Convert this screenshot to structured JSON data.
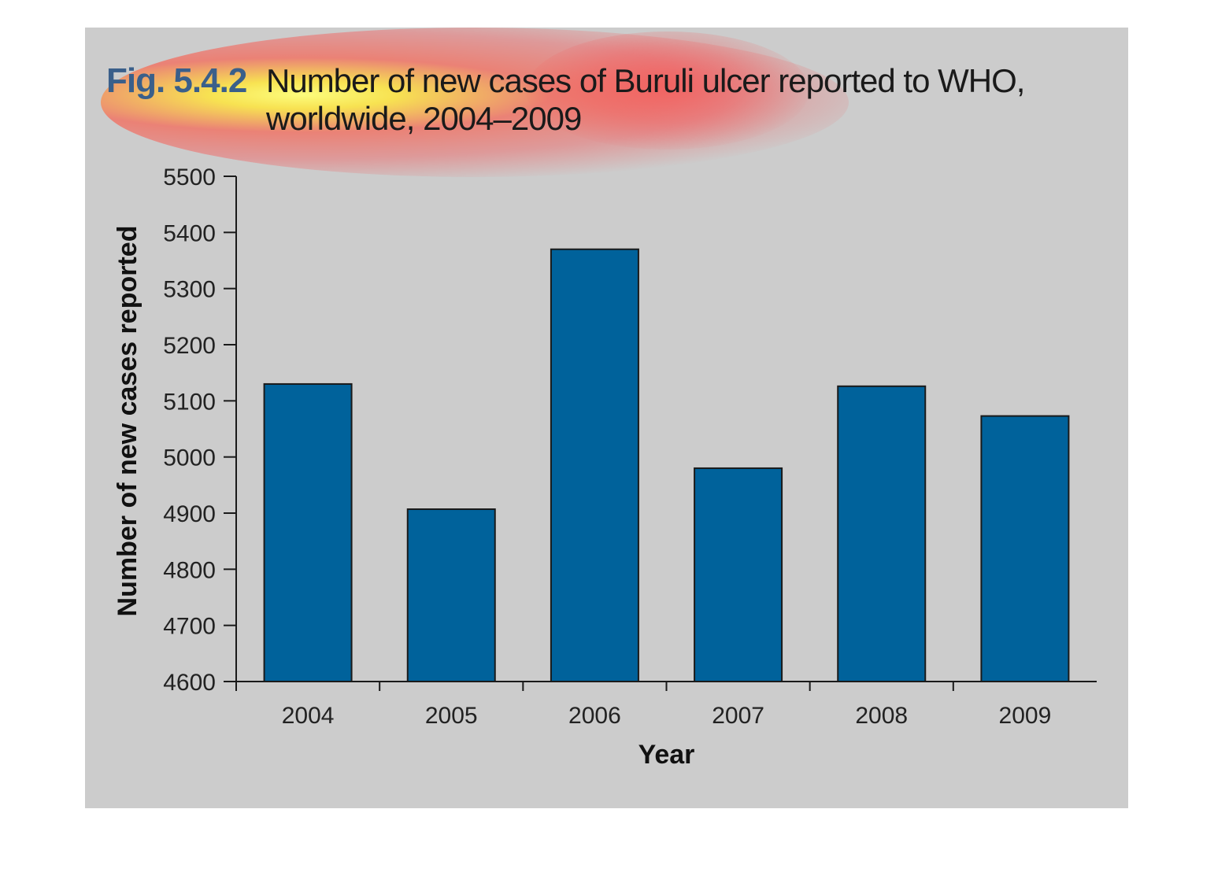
{
  "figure": {
    "number": "Fig. 5.4.2",
    "title_line1": "Number of new cases of Buruli ulcer reported to WHO,",
    "title_line2": "worldwide, 2004–2009"
  },
  "colors": {
    "panel_bg": "#cccccc",
    "bar_fill": "#00629b",
    "bar_stroke": "#1a1a1a",
    "heatmap_overlay": [
      "#ffff66",
      "#ff3333"
    ]
  },
  "chart_data": {
    "type": "bar",
    "categories": [
      "2004",
      "2005",
      "2006",
      "2007",
      "2008",
      "2009"
    ],
    "values": [
      5130,
      4907,
      5370,
      4980,
      5126,
      5073
    ],
    "xlabel": "Year",
    "ylabel": "Number of new cases reported",
    "ylim": [
      4600,
      5500
    ],
    "yticks": [
      4600,
      4700,
      4800,
      4900,
      5000,
      5100,
      5200,
      5300,
      5400,
      5500
    ],
    "grid": false,
    "legend": "none"
  }
}
